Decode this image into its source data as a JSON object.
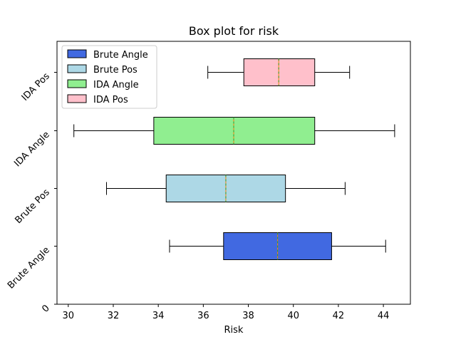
{
  "chart_data": {
    "type": "box",
    "orientation": "horizontal",
    "title": "Box plot for risk",
    "xlabel": "Risk",
    "ylabel": "",
    "xlim": [
      29.5,
      45.2
    ],
    "xticks": [
      30,
      32,
      34,
      36,
      38,
      40,
      42,
      44
    ],
    "yticks": [
      "0",
      "Brute Angle",
      "Brute Pos",
      "IDA Angle",
      "IDA Pos"
    ],
    "grid": false,
    "legend_position": "upper-left",
    "series": [
      {
        "name": "Brute Angle",
        "color": "#4169E1",
        "whisker_low": 34.5,
        "q1": 36.9,
        "median": 39.3,
        "q3": 41.7,
        "whisker_high": 44.1
      },
      {
        "name": "Brute Pos",
        "color": "#ADD8E6",
        "whisker_low": 31.7,
        "q1": 34.35,
        "median": 37.0,
        "q3": 39.65,
        "whisker_high": 42.3
      },
      {
        "name": "IDA Angle",
        "color": "#90EE90",
        "whisker_low": 30.25,
        "q1": 33.8,
        "median": 37.35,
        "q3": 40.95,
        "whisker_high": 44.5
      },
      {
        "name": "IDA Pos",
        "color": "#FFC0CB",
        "whisker_low": 36.2,
        "q1": 37.8,
        "median": 39.35,
        "q3": 40.95,
        "whisker_high": 42.5
      }
    ],
    "median_color": "#FF7F0E"
  }
}
